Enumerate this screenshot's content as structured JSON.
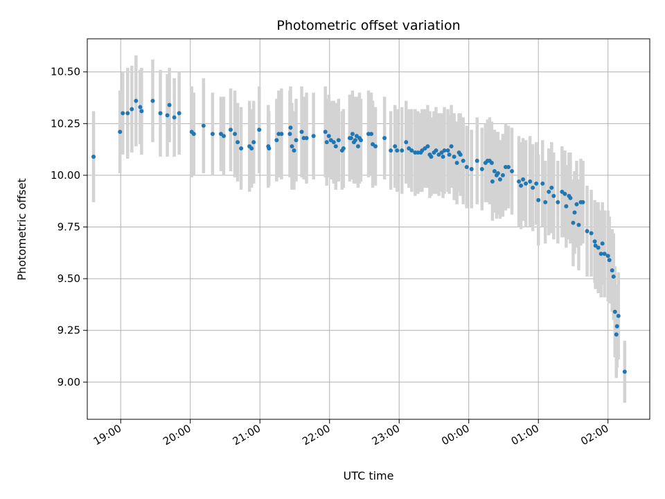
{
  "chart_data": {
    "type": "scatter",
    "title": "Photometric offset variation",
    "xlabel": "UTC time",
    "ylabel": "Photometric offset",
    "x_unit": "hours relative to 19:00 UTC",
    "x_ticks": [
      {
        "value": 0,
        "label": "19:00"
      },
      {
        "value": 1,
        "label": "20:00"
      },
      {
        "value": 2,
        "label": "21:00"
      },
      {
        "value": 3,
        "label": "22:00"
      },
      {
        "value": 4,
        "label": "23:00"
      },
      {
        "value": 5,
        "label": "00:00"
      },
      {
        "value": 6,
        "label": "01:00"
      },
      {
        "value": 7,
        "label": "02:00"
      }
    ],
    "y_ticks": [
      {
        "value": 9.0,
        "label": "9.00"
      },
      {
        "value": 9.25,
        "label": "9.25"
      },
      {
        "value": 9.5,
        "label": "9.50"
      },
      {
        "value": 9.75,
        "label": "9.75"
      },
      {
        "value": 10.0,
        "label": "10.00"
      },
      {
        "value": 10.25,
        "label": "10.25"
      },
      {
        "value": 10.5,
        "label": "10.50"
      }
    ],
    "xlim": [
      -0.48,
      7.6
    ],
    "ylim": [
      8.82,
      10.66
    ],
    "grid": true,
    "point_color": "#1f77b4",
    "errorbar_color": "#d3d3d3",
    "points": [
      [
        -0.39,
        10.09,
        0.22
      ],
      [
        -0.01,
        10.21,
        0.2
      ],
      [
        0.03,
        10.3,
        0.2
      ],
      [
        0.1,
        10.3,
        0.22
      ],
      [
        0.16,
        10.32,
        0.21
      ],
      [
        0.22,
        10.36,
        0.22
      ],
      [
        0.28,
        10.33,
        0.18
      ],
      [
        0.3,
        10.31,
        0.21
      ],
      [
        0.46,
        10.36,
        0.2
      ],
      [
        0.57,
        10.3,
        0.21
      ],
      [
        0.67,
        10.29,
        0.2
      ],
      [
        0.7,
        10.34,
        0.18
      ],
      [
        0.77,
        10.28,
        0.19
      ],
      [
        0.84,
        10.3,
        0.2
      ],
      [
        1.02,
        10.21,
        0.22
      ],
      [
        1.05,
        10.2,
        0.2
      ],
      [
        1.19,
        10.24,
        0.23
      ],
      [
        1.32,
        10.2,
        0.2
      ],
      [
        1.44,
        10.2,
        0.18
      ],
      [
        1.48,
        10.19,
        0.19
      ],
      [
        1.58,
        10.22,
        0.2
      ],
      [
        1.64,
        10.2,
        0.21
      ],
      [
        1.68,
        10.16,
        0.19
      ],
      [
        1.73,
        10.13,
        0.2
      ],
      [
        1.85,
        10.14,
        0.22
      ],
      [
        1.88,
        10.13,
        0.19
      ],
      [
        1.91,
        10.16,
        0.2
      ],
      [
        1.99,
        10.22,
        0.21
      ],
      [
        2.12,
        10.14,
        0.2
      ],
      [
        2.13,
        10.13,
        0.18
      ],
      [
        2.24,
        10.17,
        0.2
      ],
      [
        2.27,
        10.2,
        0.21
      ],
      [
        2.31,
        10.2,
        0.22
      ],
      [
        2.43,
        10.2,
        0.21
      ],
      [
        2.44,
        10.23,
        0.2
      ],
      [
        2.46,
        10.14,
        0.21
      ],
      [
        2.49,
        10.12,
        0.19
      ],
      [
        2.52,
        10.17,
        0.2
      ],
      [
        2.6,
        10.21,
        0.22
      ],
      [
        2.63,
        10.18,
        0.2
      ],
      [
        2.67,
        10.18,
        0.22
      ],
      [
        2.77,
        10.19,
        0.21
      ],
      [
        2.94,
        10.21,
        0.22
      ],
      [
        2.96,
        10.16,
        0.21
      ],
      [
        2.99,
        10.19,
        0.2
      ],
      [
        3.02,
        10.17,
        0.19
      ],
      [
        3.06,
        10.16,
        0.2
      ],
      [
        3.09,
        10.14,
        0.21
      ],
      [
        3.13,
        10.17,
        0.2
      ],
      [
        3.18,
        10.12,
        0.19
      ],
      [
        3.2,
        10.13,
        0.19
      ],
      [
        3.29,
        10.18,
        0.21
      ],
      [
        3.31,
        10.18,
        0.2
      ],
      [
        3.33,
        10.2,
        0.21
      ],
      [
        3.35,
        10.16,
        0.2
      ],
      [
        3.37,
        10.17,
        0.21
      ],
      [
        3.39,
        10.19,
        0.19
      ],
      [
        3.41,
        10.14,
        0.2
      ],
      [
        3.43,
        10.18,
        0.22
      ],
      [
        3.45,
        10.17,
        0.2
      ],
      [
        3.56,
        10.2,
        0.21
      ],
      [
        3.6,
        10.2,
        0.2
      ],
      [
        3.62,
        10.15,
        0.21
      ],
      [
        3.66,
        10.14,
        0.19
      ],
      [
        3.79,
        10.18,
        0.2
      ],
      [
        3.88,
        10.12,
        0.19
      ],
      [
        3.94,
        10.14,
        0.2
      ],
      [
        3.97,
        10.12,
        0.2
      ],
      [
        4.04,
        10.12,
        0.21
      ],
      [
        4.1,
        10.16,
        0.2
      ],
      [
        4.14,
        10.13,
        0.19
      ],
      [
        4.18,
        10.12,
        0.2
      ],
      [
        4.23,
        10.11,
        0.21
      ],
      [
        4.27,
        10.11,
        0.2
      ],
      [
        4.31,
        10.11,
        0.19
      ],
      [
        4.33,
        10.12,
        0.2
      ],
      [
        4.37,
        10.13,
        0.19
      ],
      [
        4.41,
        10.14,
        0.2
      ],
      [
        4.44,
        10.1,
        0.21
      ],
      [
        4.46,
        10.09,
        0.19
      ],
      [
        4.5,
        10.11,
        0.2
      ],
      [
        4.53,
        10.12,
        0.21
      ],
      [
        4.57,
        10.1,
        0.2
      ],
      [
        4.61,
        10.11,
        0.19
      ],
      [
        4.63,
        10.09,
        0.2
      ],
      [
        4.65,
        10.12,
        0.21
      ],
      [
        4.7,
        10.12,
        0.2
      ],
      [
        4.72,
        10.1,
        0.19
      ],
      [
        4.75,
        10.14,
        0.2
      ],
      [
        4.79,
        10.09,
        0.21
      ],
      [
        4.83,
        10.06,
        0.2
      ],
      [
        4.86,
        10.11,
        0.19
      ],
      [
        4.88,
        10.1,
        0.2
      ],
      [
        4.92,
        10.07,
        0.21
      ],
      [
        4.97,
        10.04,
        0.2
      ],
      [
        5.04,
        10.03,
        0.19
      ],
      [
        5.12,
        10.07,
        0.21
      ],
      [
        5.19,
        10.03,
        0.2
      ],
      [
        5.24,
        10.06,
        0.19
      ],
      [
        5.27,
        10.07,
        0.2
      ],
      [
        5.3,
        10.07,
        0.21
      ],
      [
        5.33,
        10.06,
        0.2
      ],
      [
        5.34,
        9.97,
        0.19
      ],
      [
        5.37,
        10.02,
        0.2
      ],
      [
        5.4,
        10.0,
        0.21
      ],
      [
        5.42,
        10.01,
        0.2
      ],
      [
        5.45,
        9.98,
        0.19
      ],
      [
        5.49,
        10.0,
        0.2
      ],
      [
        5.53,
        10.04,
        0.21
      ],
      [
        5.57,
        10.04,
        0.2
      ],
      [
        5.62,
        10.02,
        0.21
      ],
      [
        5.72,
        9.97,
        0.22
      ],
      [
        5.75,
        9.95,
        0.21
      ],
      [
        5.78,
        9.98,
        0.2
      ],
      [
        5.82,
        9.96,
        0.21
      ],
      [
        5.88,
        9.97,
        0.22
      ],
      [
        5.92,
        9.94,
        0.21
      ],
      [
        5.97,
        9.96,
        0.2
      ],
      [
        6.0,
        9.88,
        0.22
      ],
      [
        6.06,
        9.96,
        0.21
      ],
      [
        6.1,
        9.87,
        0.2
      ],
      [
        6.15,
        9.92,
        0.21
      ],
      [
        6.19,
        9.94,
        0.22
      ],
      [
        6.22,
        9.9,
        0.21
      ],
      [
        6.28,
        9.87,
        0.2
      ],
      [
        6.34,
        9.92,
        0.22
      ],
      [
        6.38,
        9.91,
        0.21
      ],
      [
        6.4,
        9.85,
        0.2
      ],
      [
        6.44,
        9.9,
        0.21
      ],
      [
        6.46,
        9.89,
        0.22
      ],
      [
        6.5,
        9.77,
        0.21
      ],
      [
        6.52,
        9.82,
        0.2
      ],
      [
        6.55,
        9.86,
        0.21
      ],
      [
        6.58,
        9.76,
        0.22
      ],
      [
        6.61,
        9.87,
        0.21
      ],
      [
        6.64,
        9.87,
        0.2
      ],
      [
        6.7,
        9.73,
        0.22
      ],
      [
        6.76,
        9.72,
        0.21
      ],
      [
        6.81,
        9.68,
        0.2
      ],
      [
        6.82,
        9.66,
        0.21
      ],
      [
        6.86,
        9.65,
        0.22
      ],
      [
        6.9,
        9.62,
        0.21
      ],
      [
        6.92,
        9.67,
        0.2
      ],
      [
        6.95,
        9.62,
        0.21
      ],
      [
        7.0,
        9.61,
        0.22
      ],
      [
        7.02,
        9.59,
        0.21
      ],
      [
        7.06,
        9.54,
        0.2
      ],
      [
        7.08,
        9.51,
        0.21
      ],
      [
        7.1,
        9.34,
        0.22
      ],
      [
        7.12,
        9.23,
        0.21
      ],
      [
        7.13,
        9.27,
        0.2
      ],
      [
        7.15,
        9.32,
        0.21
      ],
      [
        7.24,
        9.05,
        0.15
      ]
    ]
  }
}
